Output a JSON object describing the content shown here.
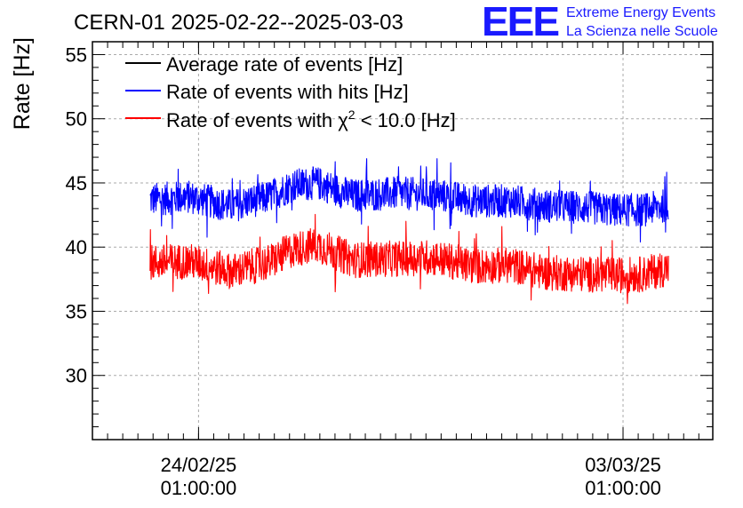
{
  "header": {
    "title": "CERN-01 2025-02-22--2025-03-03",
    "brand_logo": "EEE",
    "brand_line1": "Extreme Energy Events",
    "brand_line2": "La Scienza nelle Scuole"
  },
  "colors": {
    "average": "#000000",
    "hits": "#0000ff",
    "chi2": "#ff0000",
    "brand": "#1a1aff",
    "grid": "#aaaaaa"
  },
  "chart_data": {
    "type": "line",
    "title": "CERN-01 2025-02-22--2025-03-03",
    "ylabel": "Rate [Hz]",
    "xlabel": "",
    "ylim": [
      25,
      56
    ],
    "y_ticks": [
      "30",
      "35",
      "40",
      "45",
      "50",
      "55"
    ],
    "x_ticks": [
      {
        "date": "24/02/25",
        "time": "01:00:00"
      },
      {
        "date": "03/03/25",
        "time": "01:00:00"
      }
    ],
    "x_range_days": [
      0,
      10.23
    ],
    "x_tick_positions_days": [
      1.75,
      8.75
    ],
    "grid": true,
    "legend": {
      "position": "top-left",
      "entries": [
        {
          "label": "Average rate of events [Hz]",
          "color": "#000000"
        },
        {
          "label": "Rate of events with hits [Hz]",
          "color": "#0000ff"
        },
        {
          "label_prefix": "Rate of events with ",
          "label_symbol": "χ",
          "label_sup": "2",
          "label_suffix": " < 10.0 [Hz]",
          "color": "#ff0000"
        }
      ]
    },
    "series": [
      {
        "name": "Rate of events with hits [Hz]",
        "color": "#0000ff",
        "x_start_day": 0.95,
        "x_end_day": 9.5,
        "mean_x": [
          0.95,
          1.6,
          2.3,
          2.9,
          3.3,
          3.7,
          4.3,
          5.0,
          5.6,
          6.3,
          6.9,
          7.5,
          8.1,
          8.6,
          9.1,
          9.5
        ],
        "mean_y": [
          43.7,
          43.9,
          43.2,
          43.9,
          44.8,
          45.0,
          44.0,
          44.2,
          44.1,
          43.6,
          43.6,
          43.2,
          43.1,
          42.9,
          42.9,
          43.3
        ],
        "band_half_width": 1.3,
        "max_spike": 47.2,
        "min_spike": 40.3
      },
      {
        "name": "Rate of events with chi2 < 10.0 [Hz]",
        "color": "#ff0000",
        "x_start_day": 0.95,
        "x_end_day": 9.5,
        "mean_x": [
          0.95,
          1.6,
          2.3,
          2.9,
          3.3,
          3.7,
          4.3,
          5.0,
          5.6,
          6.3,
          6.9,
          7.5,
          8.1,
          8.6,
          9.1,
          9.5
        ],
        "mean_y": [
          38.8,
          38.9,
          38.1,
          38.8,
          39.8,
          40.2,
          39.0,
          39.1,
          39.2,
          38.5,
          38.6,
          38.0,
          37.9,
          37.8,
          37.9,
          38.4
        ],
        "band_half_width": 1.4,
        "max_spike": 43.3,
        "min_spike": 35.6
      }
    ]
  }
}
